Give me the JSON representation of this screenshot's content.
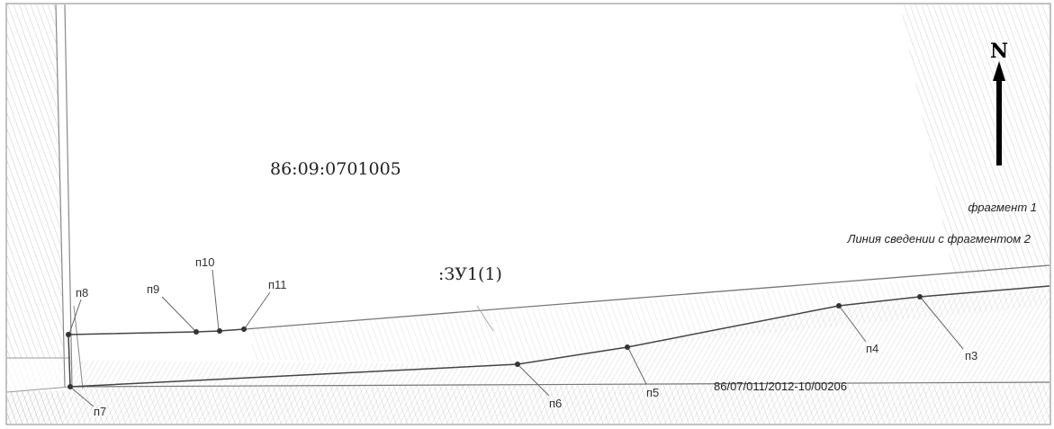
{
  "map": {
    "cadastral_block": "86:09:0701005",
    "parcel_label": ":ЗУ1(1)",
    "registration_number": "86/07/011/2012-10/00206",
    "north_label": "N",
    "fragment_label": "фрагмент 1",
    "junction_label": "Линия сведении с фрагментом 2"
  },
  "points": [
    {
      "id": "n3",
      "label": "п3"
    },
    {
      "id": "n4",
      "label": "п4"
    },
    {
      "id": "n5",
      "label": "п5"
    },
    {
      "id": "n6",
      "label": "п6"
    },
    {
      "id": "n7",
      "label": "п7"
    },
    {
      "id": "n8",
      "label": "п8"
    },
    {
      "id": "n9",
      "label": "п9"
    },
    {
      "id": "n10",
      "label": "п10"
    },
    {
      "id": "n11",
      "label": "п11"
    }
  ]
}
